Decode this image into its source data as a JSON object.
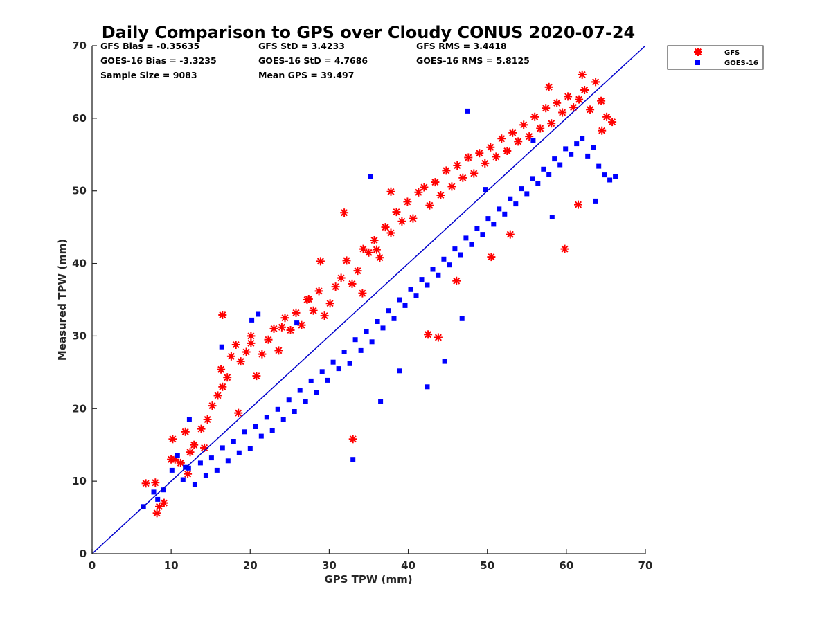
{
  "chart_data": {
    "type": "scatter",
    "title": "Daily Comparison to GPS over Cloudy CONUS 2020-07-24",
    "xlabel": "GPS TPW (mm)",
    "ylabel": "Measured TPW (mm)",
    "xlim": [
      0,
      70
    ],
    "ylim": [
      0,
      70
    ],
    "xticks": [
      "0",
      "10",
      "20",
      "30",
      "40",
      "50",
      "60",
      "70"
    ],
    "yticks": [
      "0",
      "10",
      "20",
      "30",
      "40",
      "50",
      "60",
      "70"
    ],
    "grid": false,
    "legend_position": "outside-top-right",
    "reference_line": {
      "type": "one-to-one",
      "from": [
        0,
        0
      ],
      "to": [
        70,
        70
      ],
      "color": "#0000cc"
    },
    "stats": {
      "row1": [
        "GFS Bias = -0.35635",
        "GFS StD = 3.4233",
        "GFS RMS = 3.4418"
      ],
      "row2": [
        "GOES-16 Bias = -3.3235",
        "GOES-16 StD = 4.7686",
        "GOES-16 RMS = 5.8125"
      ],
      "row3": [
        "Sample Size = 9083",
        "Mean GPS = 39.497"
      ]
    },
    "series": [
      {
        "name": "GFS",
        "marker": "asterisk",
        "color": "#ff0000",
        "x": [
          6.8,
          8.0,
          8.2,
          8.5,
          9.1,
          10.2,
          10.5,
          11.2,
          11.8,
          12.4,
          12.9,
          13.8,
          14.6,
          15.2,
          15.9,
          16.3,
          16.5,
          17.1,
          17.6,
          18.2,
          18.8,
          19.5,
          20.1,
          20.8,
          21.5,
          22.3,
          23.0,
          23.6,
          24.4,
          25.1,
          25.8,
          26.5,
          27.2,
          28.0,
          28.7,
          29.4,
          30.1,
          30.8,
          31.5,
          32.2,
          32.9,
          33.6,
          34.3,
          35.0,
          35.7,
          36.4,
          37.1,
          37.8,
          38.5,
          39.2,
          39.9,
          40.6,
          41.3,
          42.0,
          42.7,
          43.4,
          44.1,
          44.8,
          45.5,
          46.2,
          46.9,
          47.6,
          48.3,
          49.0,
          49.7,
          50.4,
          51.1,
          51.8,
          52.5,
          53.2,
          53.9,
          54.6,
          55.3,
          56.0,
          56.7,
          57.4,
          58.1,
          58.8,
          59.5,
          60.2,
          60.9,
          61.6,
          62.3,
          63.0,
          63.7,
          64.4,
          65.1,
          65.8,
          16.5,
          33.0,
          37.8,
          28.9,
          20.1,
          59.8,
          61.5,
          57.8,
          42.5,
          31.9,
          43.8,
          27.4,
          24.0,
          18.5,
          14.2,
          52.9,
          50.5,
          46.1,
          36.0,
          34.2,
          62.0,
          64.5,
          10.0,
          12.1
        ],
        "y": [
          9.7,
          9.8,
          5.6,
          6.5,
          7.0,
          15.8,
          13.0,
          12.5,
          16.8,
          14.0,
          15.0,
          17.2,
          18.5,
          20.4,
          21.8,
          25.4,
          23.0,
          24.3,
          27.2,
          28.8,
          26.5,
          27.8,
          29.0,
          24.5,
          27.5,
          29.5,
          31.0,
          28.0,
          32.5,
          30.8,
          33.2,
          31.5,
          35.0,
          33.5,
          36.2,
          32.8,
          34.5,
          36.8,
          38.0,
          40.4,
          37.2,
          39.0,
          42.0,
          41.5,
          43.2,
          40.8,
          45.0,
          44.2,
          47.1,
          45.8,
          48.5,
          46.2,
          49.8,
          50.5,
          48.0,
          51.2,
          49.4,
          52.8,
          50.6,
          53.5,
          51.8,
          54.6,
          52.4,
          55.2,
          53.8,
          56.0,
          54.7,
          57.2,
          55.5,
          58.0,
          56.8,
          59.1,
          57.5,
          60.2,
          58.6,
          61.4,
          59.3,
          62.1,
          60.8,
          63.0,
          61.5,
          62.6,
          63.9,
          61.2,
          65.0,
          62.4,
          60.2,
          59.5,
          32.9,
          15.8,
          49.9,
          40.3,
          30.0,
          42.0,
          48.1,
          64.3,
          30.2,
          47.0,
          29.8,
          35.1,
          31.2,
          19.4,
          14.6,
          44.0,
          40.9,
          37.6,
          41.9,
          35.9,
          66.0,
          58.3,
          13.0,
          11.0
        ]
      },
      {
        "name": "GOES-16",
        "marker": "square",
        "color": "#0000ff",
        "x": [
          6.5,
          7.8,
          8.3,
          9.0,
          10.1,
          10.8,
          11.5,
          12.2,
          13.0,
          13.7,
          14.4,
          15.1,
          15.8,
          16.5,
          17.2,
          17.9,
          18.6,
          19.3,
          20.0,
          20.7,
          21.4,
          22.1,
          22.8,
          23.5,
          24.2,
          24.9,
          25.6,
          26.3,
          27.0,
          27.7,
          28.4,
          29.1,
          29.8,
          30.5,
          31.2,
          31.9,
          32.6,
          33.3,
          34.0,
          34.7,
          35.4,
          36.1,
          36.8,
          37.5,
          38.2,
          38.9,
          39.6,
          40.3,
          41.0,
          41.7,
          42.4,
          43.1,
          43.8,
          44.5,
          45.2,
          45.9,
          46.6,
          47.3,
          48.0,
          48.7,
          49.4,
          50.1,
          50.8,
          51.5,
          52.2,
          52.9,
          53.6,
          54.3,
          55.0,
          55.7,
          56.4,
          57.1,
          57.8,
          58.5,
          59.2,
          59.9,
          60.6,
          61.3,
          62.0,
          62.7,
          63.4,
          64.1,
          64.8,
          65.5,
          66.2,
          20.2,
          21.0,
          33.0,
          36.5,
          42.4,
          46.8,
          49.8,
          47.5,
          35.2,
          16.4,
          11.8,
          25.9,
          55.8,
          44.6,
          38.9,
          58.2,
          63.7,
          12.3
        ],
        "y": [
          6.5,
          8.5,
          7.5,
          8.8,
          11.5,
          13.5,
          10.2,
          11.8,
          9.5,
          12.5,
          10.8,
          13.2,
          11.5,
          14.6,
          12.8,
          15.5,
          13.9,
          16.8,
          14.5,
          17.5,
          16.2,
          18.8,
          17.0,
          19.9,
          18.5,
          21.2,
          19.6,
          22.5,
          21.0,
          23.8,
          22.2,
          25.1,
          23.9,
          26.4,
          25.5,
          27.8,
          26.2,
          29.5,
          28.0,
          30.6,
          29.2,
          32.0,
          31.1,
          33.5,
          32.4,
          35.0,
          34.2,
          36.4,
          35.6,
          37.8,
          37.0,
          39.2,
          38.4,
          40.6,
          39.8,
          42.0,
          41.2,
          43.5,
          42.6,
          44.8,
          44.0,
          46.2,
          45.4,
          47.5,
          46.8,
          48.9,
          48.2,
          50.3,
          49.6,
          51.7,
          51.0,
          53.0,
          52.3,
          54.4,
          53.6,
          55.8,
          55.0,
          56.5,
          57.2,
          54.8,
          56.0,
          53.4,
          52.2,
          51.5,
          52.0,
          32.2,
          33.0,
          13.0,
          21.0,
          23.0,
          32.4,
          50.2,
          61.0,
          52.0,
          28.5,
          11.9,
          31.8,
          56.9,
          26.5,
          25.2,
          46.4,
          48.6,
          18.5
        ]
      }
    ]
  }
}
